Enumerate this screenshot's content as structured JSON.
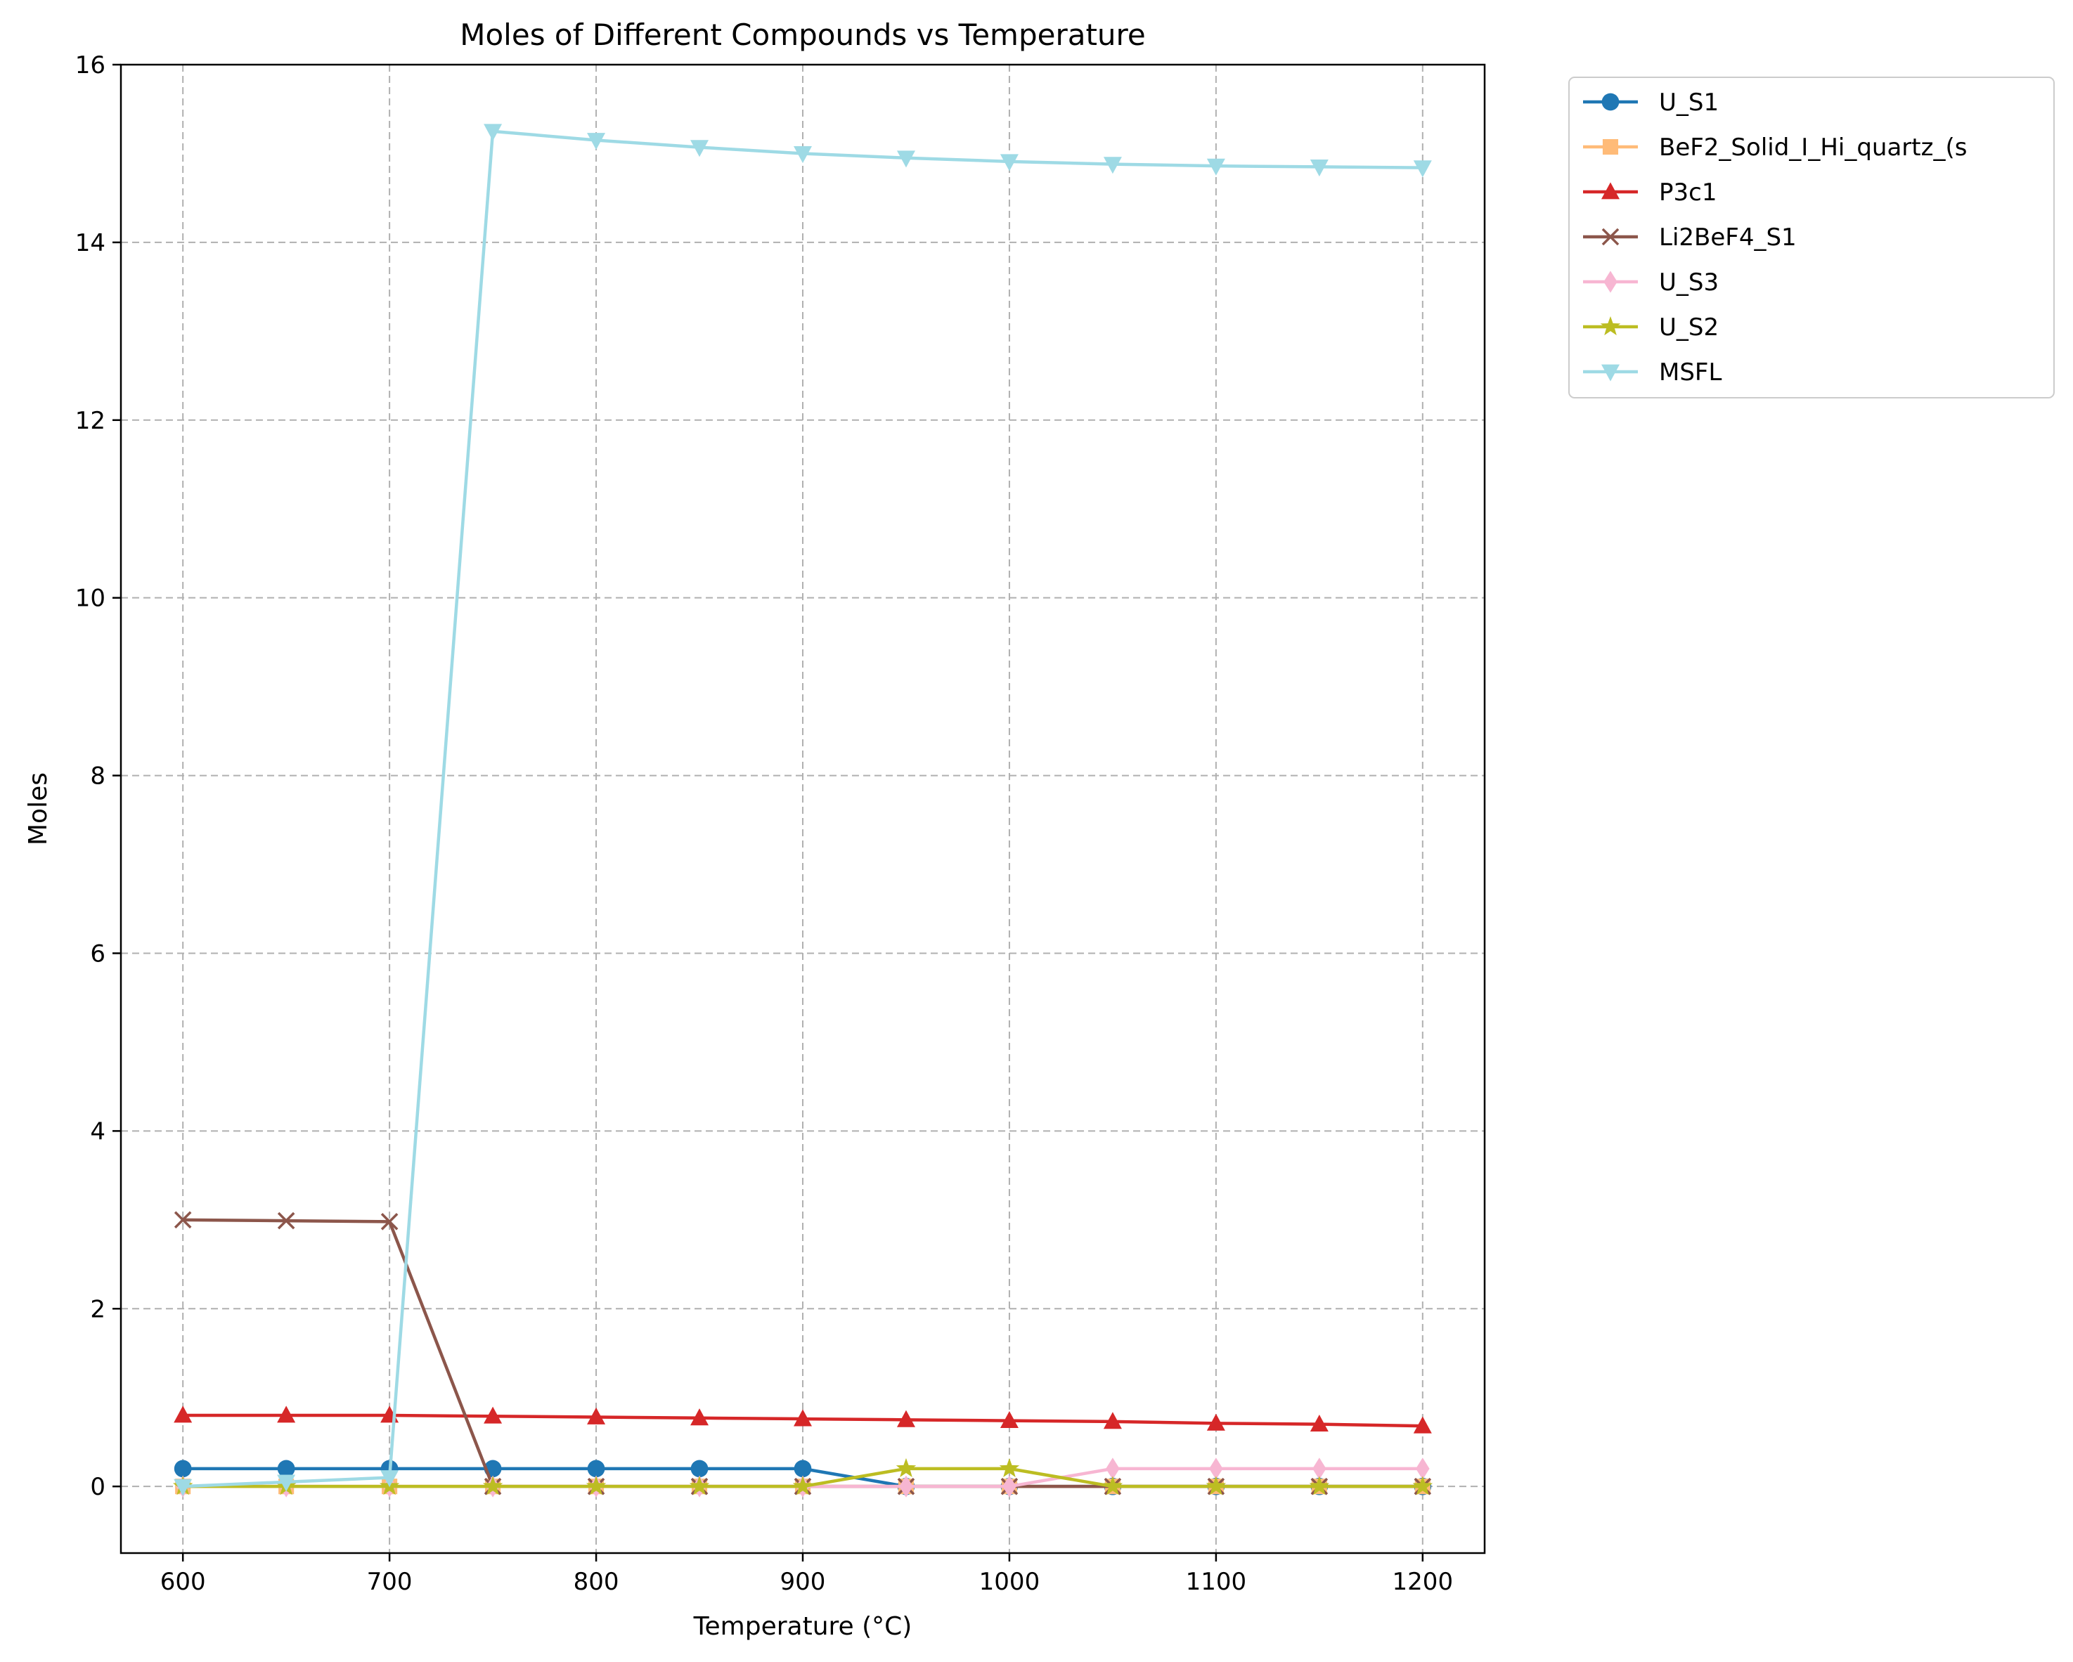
{
  "chart_data": {
    "type": "line",
    "title": "Moles of Different Compounds vs Temperature",
    "xlabel": "Temperature (°C)",
    "ylabel": "Moles",
    "xlim": [
      570,
      1230
    ],
    "ylim": [
      -0.75,
      16
    ],
    "xticks": [
      600,
      700,
      800,
      900,
      1000,
      1100,
      1200
    ],
    "yticks": [
      0,
      2,
      4,
      6,
      8,
      10,
      12,
      14,
      16
    ],
    "grid": true,
    "legend_position": "outside-top-right",
    "x": [
      600,
      650,
      700,
      750,
      800,
      850,
      900,
      950,
      1000,
      1050,
      1100,
      1150,
      1200
    ],
    "series": [
      {
        "name": "U_S1",
        "color": "#1f77b4",
        "marker": "circle",
        "values": [
          0.2,
          0.2,
          0.2,
          0.2,
          0.2,
          0.2,
          0.2,
          0.0,
          0.0,
          0.0,
          0.0,
          0.0,
          0.0
        ]
      },
      {
        "name": "BeF2_Solid_I_Hi_quartz_(s",
        "color": "#ffbb78",
        "marker": "square",
        "values": [
          0.0,
          0.0,
          0.0,
          0.0,
          0.0,
          0.0,
          0.0,
          0.0,
          0.0,
          0.0,
          0.0,
          0.0,
          0.0
        ]
      },
      {
        "name": "P3c1",
        "color": "#d62728",
        "marker": "triangle-up",
        "values": [
          0.8,
          0.8,
          0.8,
          0.79,
          0.78,
          0.77,
          0.76,
          0.75,
          0.74,
          0.73,
          0.71,
          0.7,
          0.68
        ]
      },
      {
        "name": "Li2BeF4_S1",
        "color": "#8c564b",
        "marker": "x",
        "values": [
          3.0,
          2.99,
          2.98,
          0.0,
          0.0,
          0.0,
          0.0,
          0.0,
          0.0,
          0.0,
          0.0,
          0.0,
          0.0
        ]
      },
      {
        "name": "U_S3",
        "color": "#f7b6d2",
        "marker": "diamond",
        "values": [
          0.0,
          0.0,
          0.0,
          0.0,
          0.0,
          0.0,
          0.0,
          0.0,
          0.0,
          0.2,
          0.2,
          0.2,
          0.2
        ]
      },
      {
        "name": "U_S2",
        "color": "#bcbd22",
        "marker": "star",
        "values": [
          0.0,
          0.0,
          0.0,
          0.0,
          0.0,
          0.0,
          0.0,
          0.2,
          0.2,
          0.0,
          0.0,
          0.0,
          0.0
        ]
      },
      {
        "name": "MSFL",
        "color": "#9edae5",
        "marker": "triangle-down",
        "values": [
          0.0,
          0.05,
          0.1,
          15.25,
          15.15,
          15.07,
          15.0,
          14.95,
          14.91,
          14.88,
          14.86,
          14.85,
          14.84
        ]
      }
    ]
  }
}
